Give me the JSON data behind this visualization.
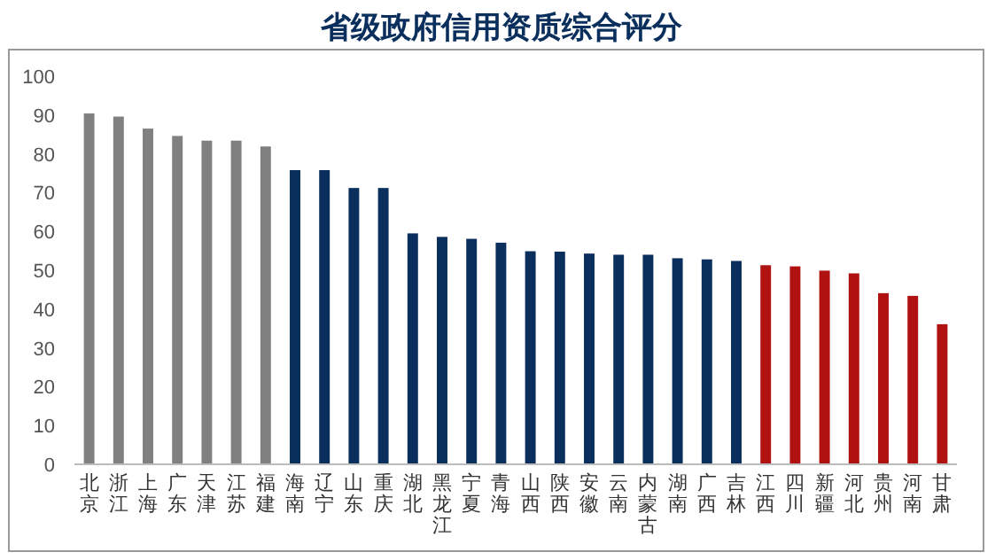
{
  "chart_data": {
    "type": "bar",
    "title": "省级政府信用资质综合评分",
    "categories": [
      "北京",
      "浙江",
      "上海",
      "广东",
      "天津",
      "江苏",
      "福建",
      "海南",
      "辽宁",
      "山东",
      "重庆",
      "湖北",
      "黑龙江",
      "宁夏",
      "青海",
      "山西",
      "陕西",
      "安徽",
      "云南",
      "内蒙古",
      "湖南",
      "广西",
      "吉林",
      "江西",
      "四川",
      "新疆",
      "河北",
      "贵州",
      "河南",
      "甘肃"
    ],
    "values": [
      90.4,
      89.6,
      86.5,
      84.6,
      83.4,
      83.4,
      81.9,
      75.8,
      75.8,
      71.2,
      71.2,
      59.5,
      58.6,
      58.1,
      57.1,
      54.9,
      54.8,
      54.3,
      54.0,
      54.0,
      53.1,
      52.8,
      52.4,
      51.3,
      51.0,
      49.9,
      49.2,
      44.1,
      43.4,
      36.1
    ],
    "colors": [
      "#808080",
      "#808080",
      "#808080",
      "#808080",
      "#808080",
      "#808080",
      "#808080",
      "#0b2f5c",
      "#0b2f5c",
      "#0b2f5c",
      "#0b2f5c",
      "#0b2f5c",
      "#0b2f5c",
      "#0b2f5c",
      "#0b2f5c",
      "#0b2f5c",
      "#0b2f5c",
      "#0b2f5c",
      "#0b2f5c",
      "#0b2f5c",
      "#0b2f5c",
      "#0b2f5c",
      "#0b2f5c",
      "#b01212",
      "#b01212",
      "#b01212",
      "#b01212",
      "#b01212",
      "#b01212",
      "#b01212"
    ],
    "ylim": [
      0,
      100
    ],
    "yticks": [
      0,
      10,
      20,
      30,
      40,
      50,
      60,
      70,
      80,
      90,
      100
    ]
  }
}
